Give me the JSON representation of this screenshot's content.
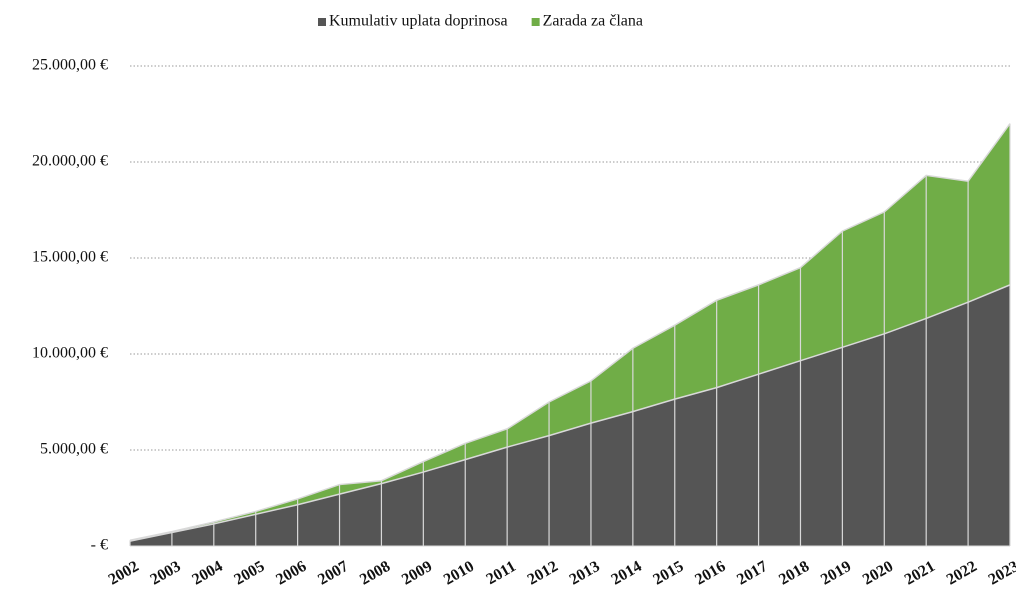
{
  "chart_data": {
    "type": "stacked_area",
    "categories": [
      "2002",
      "2003",
      "2004",
      "2005",
      "2006",
      "2007",
      "2008",
      "2009",
      "2010",
      "2011",
      "2012",
      "2013",
      "2014",
      "2015",
      "2016",
      "2017",
      "2018",
      "2019",
      "2020",
      "2021",
      "2022",
      "2023"
    ],
    "series": [
      {
        "name": "Kumulativ uplata doprinosa",
        "color": "#555555",
        "values": [
          250,
          700,
          1150,
          1650,
          2150,
          2700,
          3250,
          3850,
          4500,
          5150,
          5750,
          6400,
          7000,
          7650,
          8250,
          8950,
          9650,
          10350,
          11050,
          11850,
          12700,
          13600
        ]
      },
      {
        "name": "Zarada za člana",
        "color": "#70ad47",
        "values": [
          50,
          50,
          100,
          150,
          300,
          500,
          150,
          550,
          850,
          950,
          1750,
          2200,
          3300,
          3850,
          4550,
          4650,
          4850,
          6050,
          6350,
          7450,
          6300,
          8400
        ]
      }
    ],
    "ylim": [
      0,
      25000
    ],
    "yticks": [
      {
        "value": 0,
        "label": "-  €"
      },
      {
        "value": 5000,
        "label": "5.000,00 €"
      },
      {
        "value": 10000,
        "label": "10.000,00 €"
      },
      {
        "value": 15000,
        "label": "15.000,00 €"
      },
      {
        "value": 20000,
        "label": "20.000,00 €"
      },
      {
        "value": 25000,
        "label": "25.000,00 €"
      }
    ],
    "grid": true,
    "legend": "top"
  }
}
